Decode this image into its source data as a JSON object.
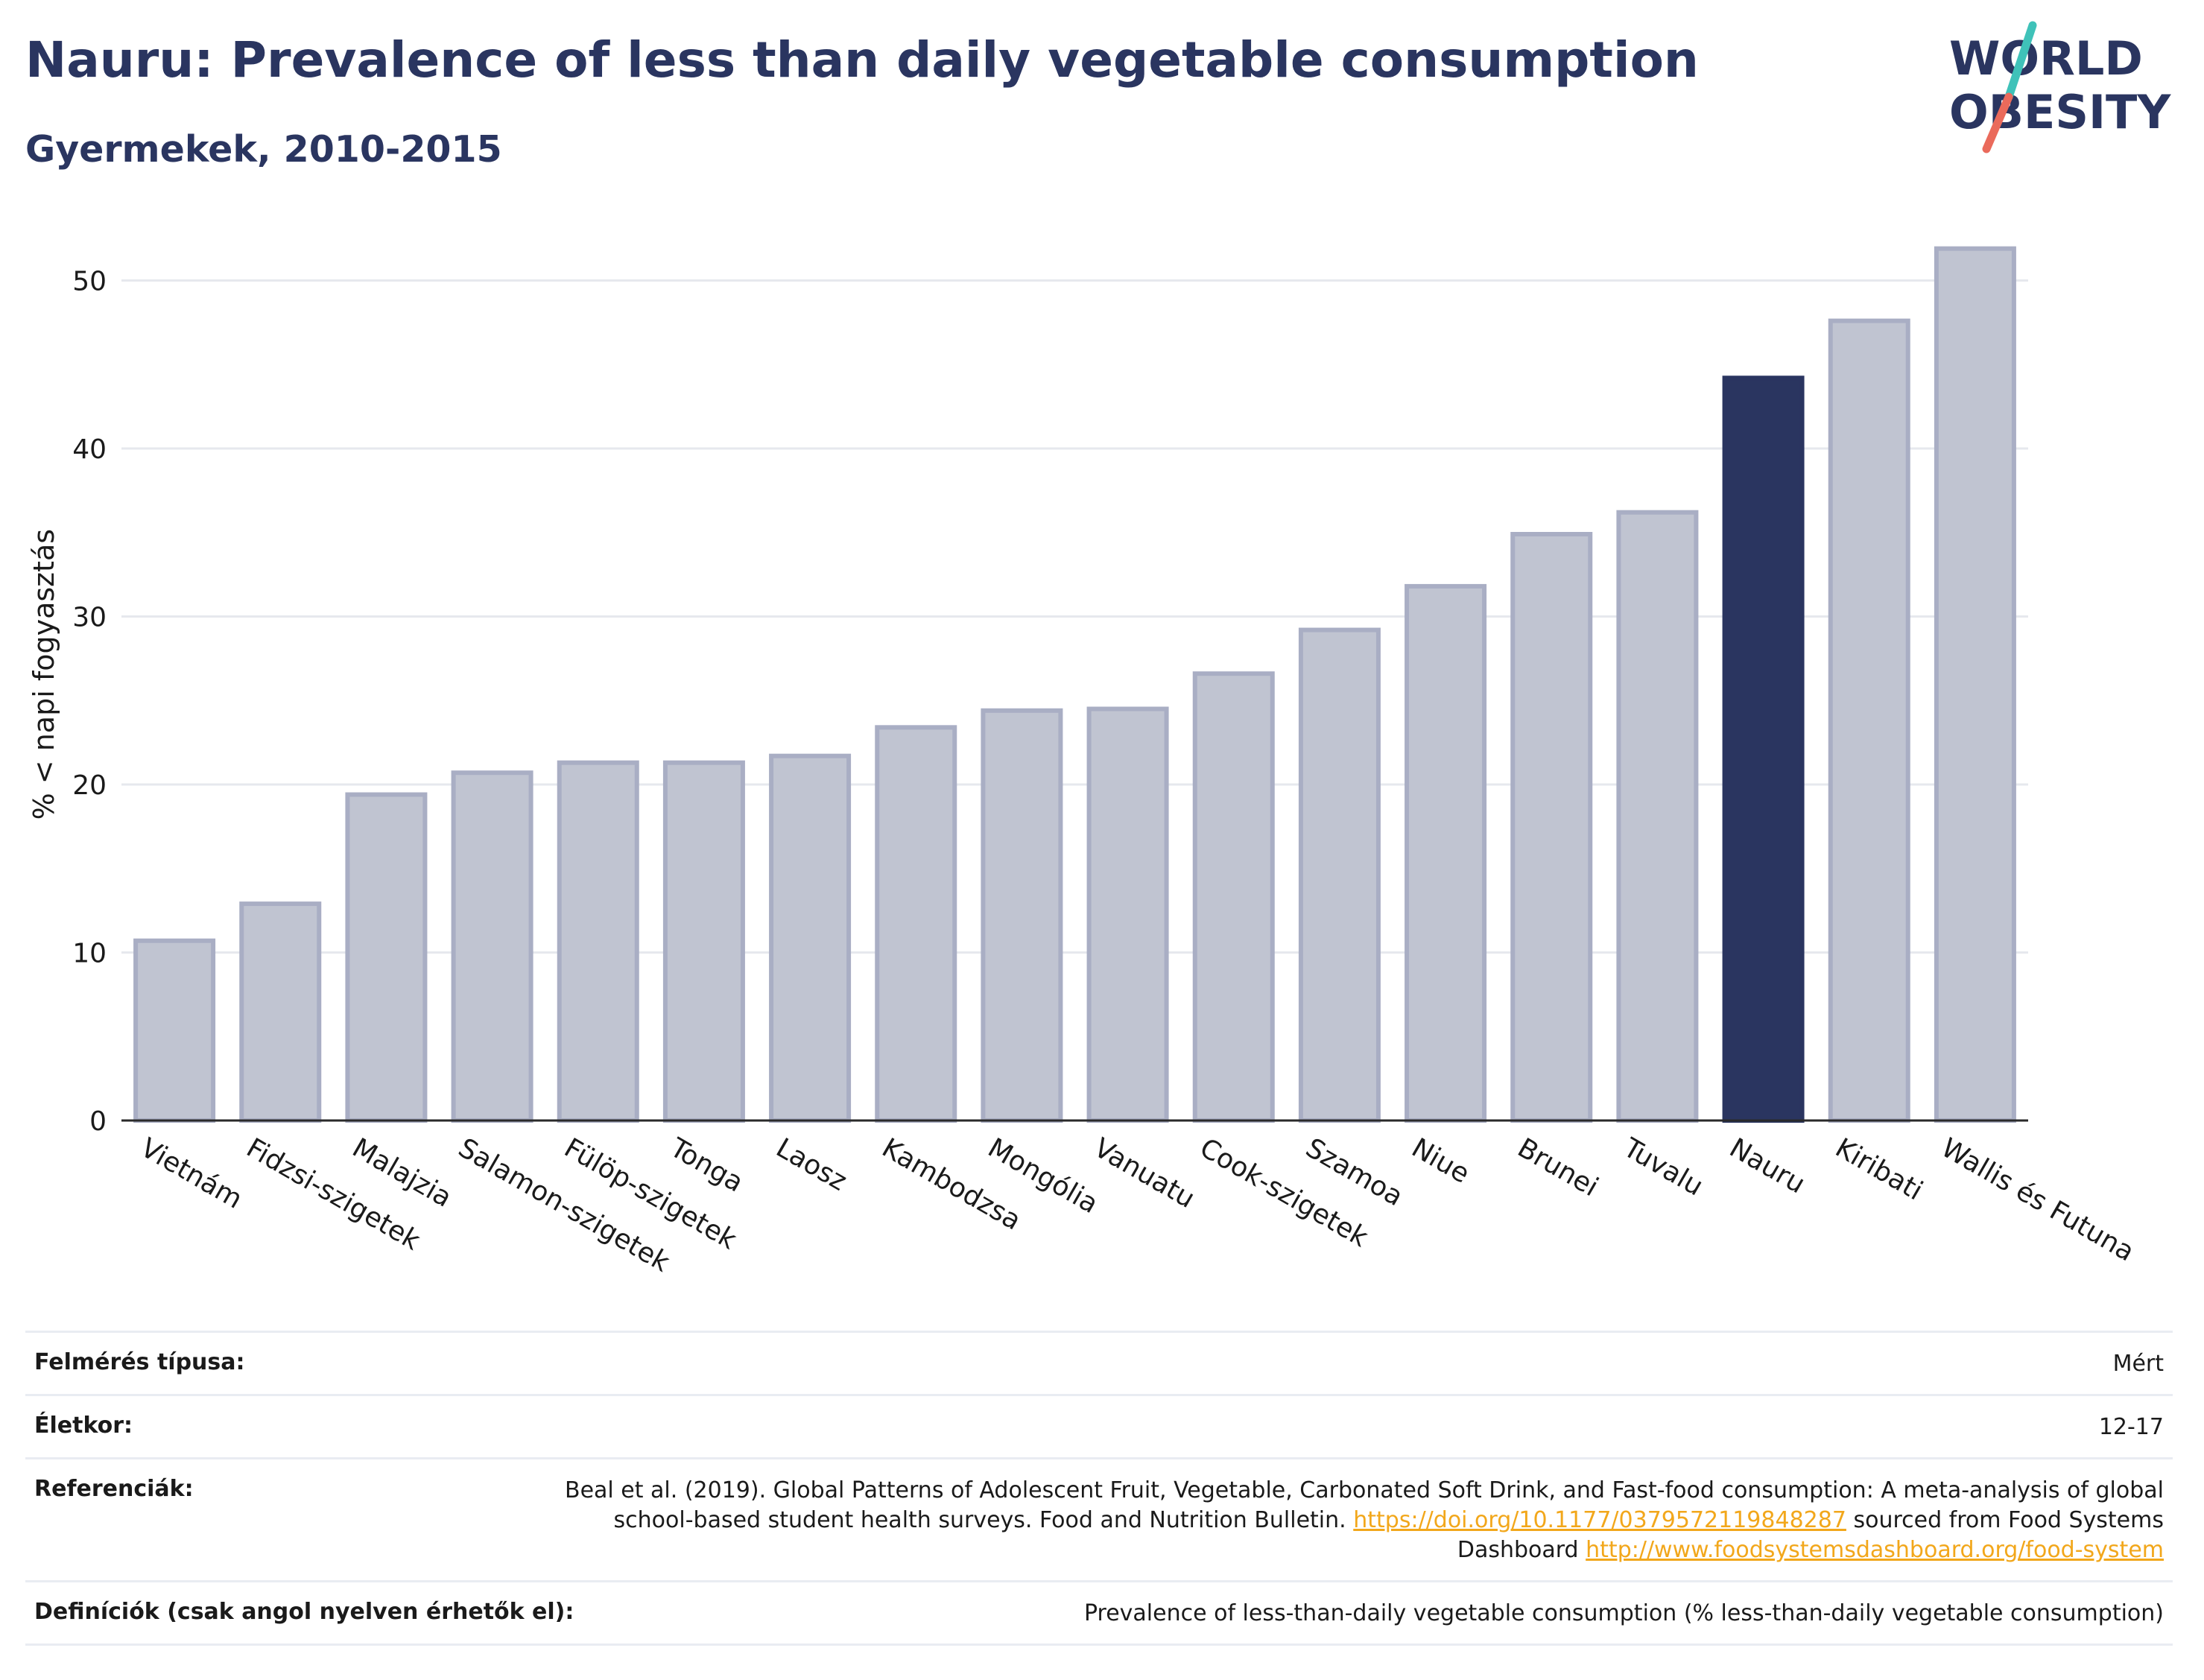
{
  "header": {
    "title": "Nauru: Prevalence of less than daily vegetable consumption",
    "subtitle": "Gyermekek, 2010-2015"
  },
  "logo": {
    "line1": "WORLD",
    "line2": "OBESITY",
    "colors": {
      "text": "#2a3560",
      "slash_top": "#3fc2b9",
      "slash_bottom": "#ea6a5b"
    }
  },
  "chart_data": {
    "type": "bar",
    "ylabel": "% < napi fogyasztás",
    "ylim": [
      0,
      54
    ],
    "yticks": [
      0,
      10,
      20,
      30,
      40,
      50
    ],
    "grid": true,
    "categories": [
      "Vietnám",
      "Fidzsi-szigetek",
      "Malajzia",
      "Salamon-szigetek",
      "Fülöp-szigetek",
      "Tonga",
      "Laosz",
      "Kambodzsa",
      "Mongólia",
      "Vanuatu",
      "Cook-szigetek",
      "Szamoa",
      "Niue",
      "Brunei",
      "Tuvalu",
      "Nauru",
      "Kiribati",
      "Wallis és Futuna"
    ],
    "values": [
      10.7,
      12.9,
      19.4,
      20.7,
      21.3,
      21.3,
      21.7,
      23.4,
      24.4,
      24.5,
      26.6,
      29.2,
      31.8,
      34.9,
      36.2,
      44.2,
      47.6,
      51.9
    ],
    "highlight": "Nauru",
    "colors": {
      "bar": "#c0c4d1",
      "bar_edge": "#a9aec4",
      "highlight": "#2a3560"
    }
  },
  "meta": {
    "survey_type_label": "Felmérés típusa:",
    "survey_type_value": "Mért",
    "age_label": "Életkor:",
    "age_value": "12-17",
    "references_label": "Referenciák:",
    "references_text1": "Beal et al. (2019). Global Patterns of Adolescent Fruit, Vegetable, Carbonated Soft Drink, and Fast-food consumption: A meta-analysis of global school-based student health surveys. Food and Nutrition Bulletin.",
    "references_link1": "https://doi.org/10.1177/0379572119848287",
    "references_text2": "sourced from Food Systems Dashboard",
    "references_link2": "http://www.foodsystemsdashboard.org/food-system",
    "definitions_label": "Definíciók (csak angol nyelven érhetők el):",
    "definitions_value": "Prevalence of less-than-daily vegetable consumption (% less-than-daily vegetable consumption)"
  }
}
